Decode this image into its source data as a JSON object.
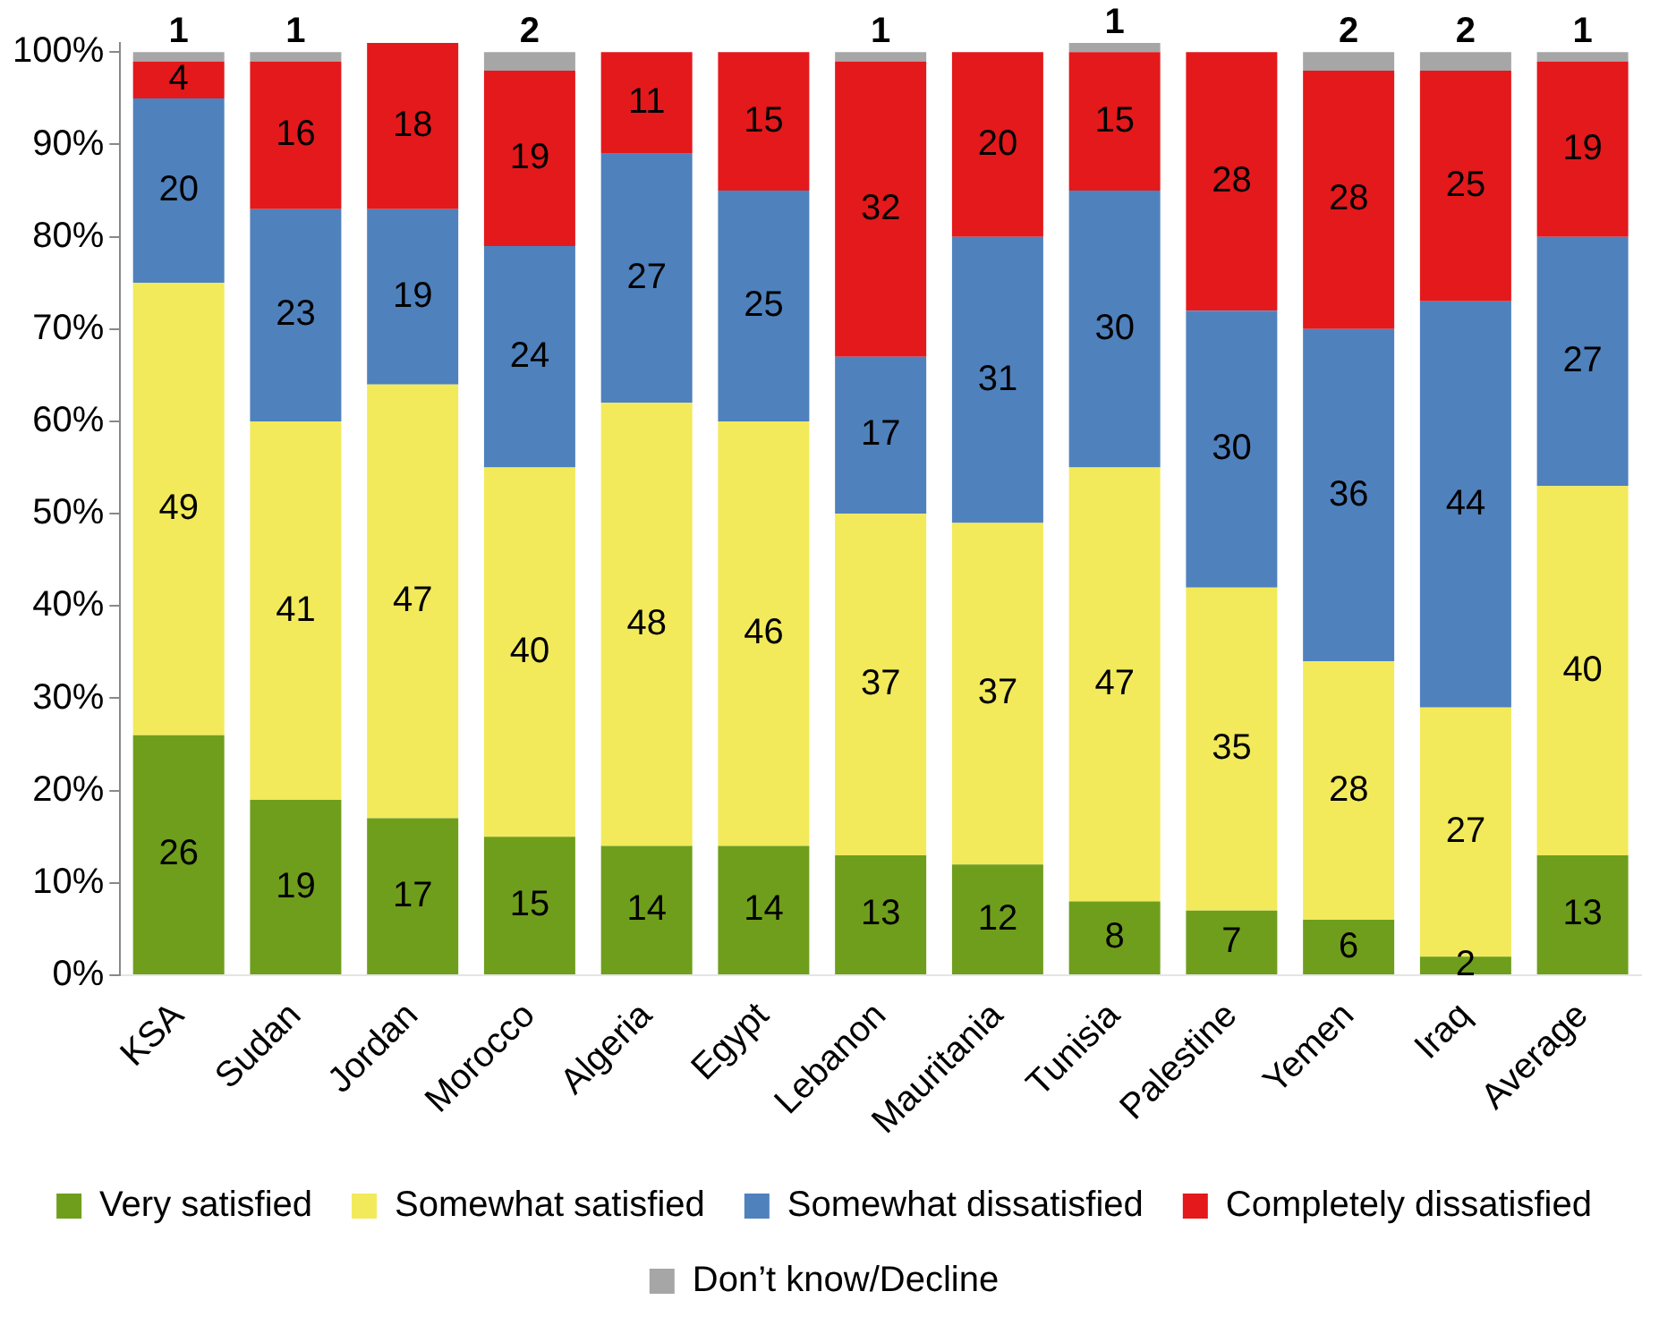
{
  "chart_data": {
    "type": "bar",
    "stacked": true,
    "data_labels": true,
    "grid": false,
    "legend": "bottom",
    "categories": [
      "KSA",
      "Sudan",
      "Jordan",
      "Morocco",
      "Algeria",
      "Egypt",
      "Lebanon",
      "Mauritania",
      "Tunisia",
      "Palestine",
      "Yemen",
      "Iraq",
      "Average"
    ],
    "series": [
      {
        "name": "Very satisfied",
        "color": "#6f9e1c",
        "values": [
          26,
          19,
          17,
          15,
          14,
          14,
          13,
          12,
          8,
          7,
          6,
          2,
          13
        ]
      },
      {
        "name": "Somewhat satisfied",
        "color": "#f2ea5a",
        "values": [
          49,
          41,
          47,
          40,
          48,
          46,
          37,
          37,
          47,
          35,
          28,
          27,
          40
        ]
      },
      {
        "name": "Somewhat dissatisfied",
        "color": "#4f81bd",
        "values": [
          20,
          23,
          19,
          24,
          27,
          25,
          17,
          31,
          30,
          30,
          36,
          44,
          27
        ]
      },
      {
        "name": "Completely dissatisfied",
        "color": "#e3191c",
        "values": [
          4,
          16,
          18,
          19,
          11,
          15,
          32,
          20,
          15,
          28,
          28,
          25,
          19
        ]
      },
      {
        "name": "Don’t know/Decline",
        "color": "#a6a6a6",
        "values": [
          1,
          1,
          null,
          2,
          null,
          null,
          1,
          null,
          1,
          null,
          2,
          2,
          1
        ]
      }
    ],
    "ylim": [
      0,
      101
    ],
    "yticks": [
      {
        "value": 0,
        "label": "0%"
      },
      {
        "value": 10,
        "label": "10%"
      },
      {
        "value": 20,
        "label": "20%"
      },
      {
        "value": 30,
        "label": "30%"
      },
      {
        "value": 40,
        "label": "40%"
      },
      {
        "value": 50,
        "label": "50%"
      },
      {
        "value": 60,
        "label": "60%"
      },
      {
        "value": 70,
        "label": "70%"
      },
      {
        "value": 80,
        "label": "80%"
      },
      {
        "value": 90,
        "label": "90%"
      },
      {
        "value": 100,
        "label": "100%"
      }
    ]
  }
}
